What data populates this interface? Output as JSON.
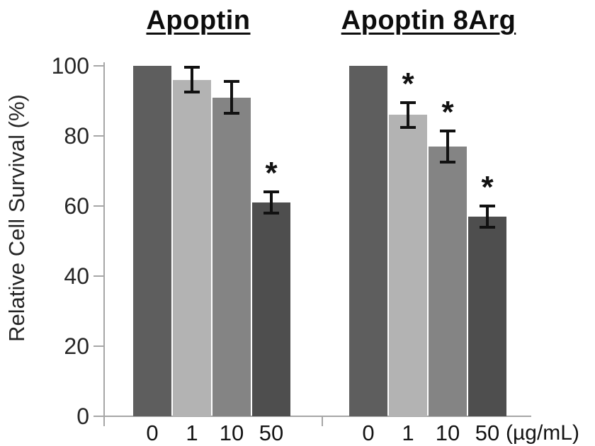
{
  "chart_data": {
    "type": "bar",
    "title": "",
    "ylabel": "Relative Cell Survival (%)",
    "xlabel": "",
    "x_unit_label": "(µg/mL)",
    "ylim": [
      0,
      100
    ],
    "yticks": [
      0,
      20,
      40,
      60,
      80,
      100
    ],
    "categories": [
      "0",
      "1",
      "10",
      "50"
    ],
    "groups": [
      {
        "name": "Apoptin",
        "values": [
          100,
          96,
          91,
          61
        ],
        "errors": [
          null,
          3.5,
          4.5,
          3
        ],
        "significant": [
          false,
          false,
          false,
          true
        ]
      },
      {
        "name": "Apoptin 8Arg",
        "values": [
          100,
          86,
          77,
          57
        ],
        "errors": [
          null,
          3.5,
          4.5,
          3
        ],
        "significant": [
          false,
          true,
          true,
          true
        ]
      }
    ],
    "significance_marker": "*",
    "legend": null,
    "grid": false,
    "bar_colors": [
      "#5e5e5e",
      "#b3b3b3",
      "#848484",
      "#4e4e4e"
    ],
    "axis_color": "#a6a6a6",
    "error_bar_color": "#111111",
    "text_color": "#262626",
    "background_color": "#ffffff"
  }
}
